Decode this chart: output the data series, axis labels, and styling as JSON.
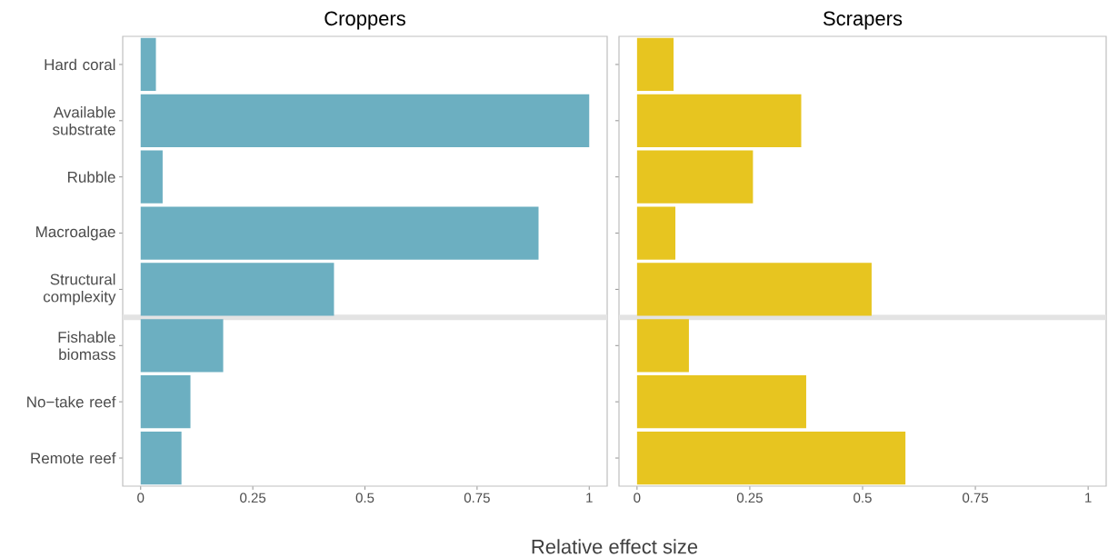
{
  "chart_data": [
    {
      "type": "bar",
      "orientation": "horizontal",
      "title": "Croppers",
      "xlabel": "Relative effect size",
      "categories": [
        "Hard coral",
        "Available substrate",
        "Rubble",
        "Macroalgae",
        "Structural complexity",
        "Fishable biomass",
        "No−take reef",
        "Remote reef"
      ],
      "values": [
        0.034,
        1.0,
        0.049,
        0.887,
        0.431,
        0.184,
        0.111,
        0.091
      ],
      "color": "#6cafc1",
      "xlim": [
        -0.04,
        1.04
      ],
      "xticks": [
        0,
        0.25,
        0.5,
        0.75,
        1
      ]
    },
    {
      "type": "bar",
      "orientation": "horizontal",
      "title": "Scrapers",
      "tick_labels": "x",
      "values": [
        0.081,
        0.364,
        0.257,
        0.085,
        0.52,
        0.115,
        0.375,
        0.595
      ],
      "color": "#e7c520",
      "xlim": [
        -0.04,
        1.04
      ],
      "xticks": [
        0,
        0.25,
        0.5,
        0.75,
        1
      ]
    }
  ]
}
